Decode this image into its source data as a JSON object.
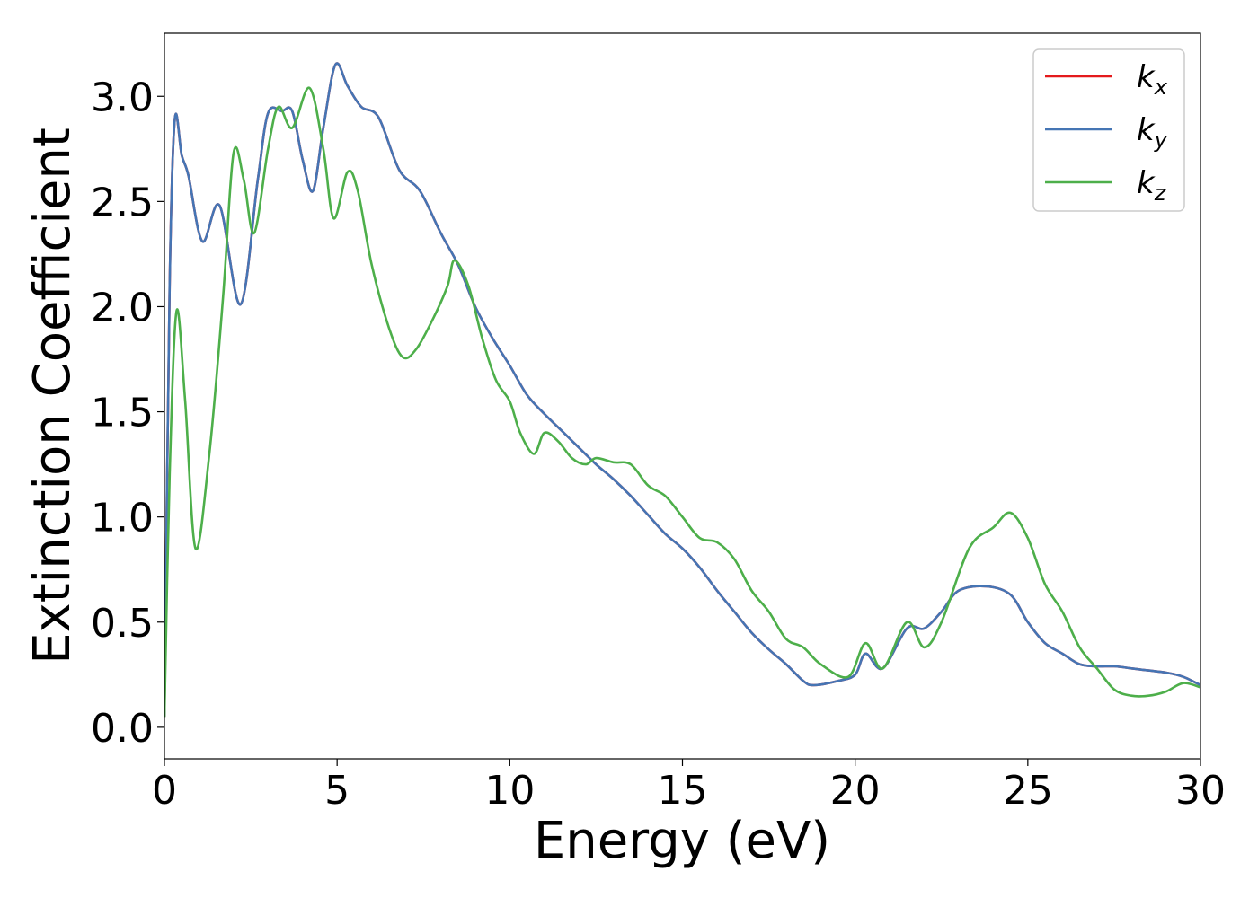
{
  "chart_data": {
    "type": "line",
    "title": "",
    "xlabel": "Energy (eV)",
    "ylabel": "Extinction Coefficient",
    "xlim": [
      0,
      30
    ],
    "ylim": [
      -0.15,
      3.3
    ],
    "xticks": [
      0,
      5,
      10,
      15,
      20,
      25,
      30
    ],
    "xtick_labels": [
      "0",
      "5",
      "10",
      "15",
      "20",
      "25",
      "30"
    ],
    "yticks": [
      0.0,
      0.5,
      1.0,
      1.5,
      2.0,
      2.5,
      3.0
    ],
    "ytick_labels": [
      "0.0",
      "0.5",
      "1.0",
      "1.5",
      "2.0",
      "2.5",
      "3.0"
    ],
    "grid": false,
    "legend_position": "top-right",
    "series": [
      {
        "name": "kx",
        "legend_base": "k",
        "legend_sub": "x",
        "color": "#e41a1c",
        "x": [
          0,
          0.15,
          0.3,
          0.5,
          0.7,
          1.1,
          1.6,
          2.2,
          2.7,
          3.0,
          3.4,
          3.7,
          4.0,
          4.3,
          4.6,
          4.95,
          5.3,
          5.7,
          6.2,
          6.8,
          7.4,
          8.0,
          8.5,
          9.0,
          9.5,
          10.0,
          10.5,
          11.0,
          11.5,
          12.0,
          12.5,
          13.0,
          13.5,
          14.0,
          14.5,
          15.0,
          15.5,
          16.0,
          16.5,
          17.0,
          17.5,
          18.0,
          18.5,
          18.8,
          19.5,
          20.0,
          20.3,
          20.8,
          21.5,
          22.0,
          22.5,
          23.0,
          23.8,
          24.5,
          25.0,
          25.5,
          26.0,
          26.5,
          27.0,
          27.5,
          28.0,
          28.5,
          29.0,
          29.5,
          30.0
        ],
        "y": [
          0.05,
          2.1,
          2.89,
          2.72,
          2.62,
          2.31,
          2.48,
          2.01,
          2.6,
          2.92,
          2.93,
          2.93,
          2.7,
          2.55,
          2.85,
          3.15,
          3.05,
          2.95,
          2.9,
          2.65,
          2.55,
          2.35,
          2.2,
          2.0,
          1.85,
          1.72,
          1.58,
          1.49,
          1.41,
          1.33,
          1.25,
          1.18,
          1.1,
          1.01,
          0.92,
          0.85,
          0.76,
          0.65,
          0.55,
          0.45,
          0.37,
          0.3,
          0.22,
          0.2,
          0.22,
          0.25,
          0.35,
          0.28,
          0.47,
          0.47,
          0.55,
          0.65,
          0.67,
          0.63,
          0.5,
          0.4,
          0.35,
          0.3,
          0.29,
          0.29,
          0.28,
          0.27,
          0.26,
          0.24,
          0.2
        ]
      },
      {
        "name": "ky",
        "legend_base": "k",
        "legend_sub": "y",
        "color": "#4575b4",
        "x": [
          0,
          0.15,
          0.3,
          0.5,
          0.7,
          1.1,
          1.6,
          2.2,
          2.7,
          3.0,
          3.4,
          3.7,
          4.0,
          4.3,
          4.6,
          4.95,
          5.3,
          5.7,
          6.2,
          6.8,
          7.4,
          8.0,
          8.5,
          9.0,
          9.5,
          10.0,
          10.5,
          11.0,
          11.5,
          12.0,
          12.5,
          13.0,
          13.5,
          14.0,
          14.5,
          15.0,
          15.5,
          16.0,
          16.5,
          17.0,
          17.5,
          18.0,
          18.5,
          18.8,
          19.5,
          20.0,
          20.3,
          20.8,
          21.5,
          22.0,
          22.5,
          23.0,
          23.8,
          24.5,
          25.0,
          25.5,
          26.0,
          26.5,
          27.0,
          27.5,
          28.0,
          28.5,
          29.0,
          29.5,
          30.0
        ],
        "y": [
          0.05,
          2.1,
          2.89,
          2.72,
          2.62,
          2.31,
          2.48,
          2.01,
          2.6,
          2.92,
          2.93,
          2.93,
          2.7,
          2.55,
          2.85,
          3.15,
          3.05,
          2.95,
          2.9,
          2.65,
          2.55,
          2.35,
          2.2,
          2.0,
          1.85,
          1.72,
          1.58,
          1.49,
          1.41,
          1.33,
          1.25,
          1.18,
          1.1,
          1.01,
          0.92,
          0.85,
          0.76,
          0.65,
          0.55,
          0.45,
          0.37,
          0.3,
          0.22,
          0.2,
          0.22,
          0.25,
          0.35,
          0.28,
          0.47,
          0.47,
          0.55,
          0.65,
          0.67,
          0.63,
          0.5,
          0.4,
          0.35,
          0.3,
          0.29,
          0.29,
          0.28,
          0.27,
          0.26,
          0.24,
          0.2
        ]
      },
      {
        "name": "kz",
        "legend_base": "k",
        "legend_sub": "z",
        "color": "#4daf4a",
        "x": [
          0,
          0.15,
          0.35,
          0.6,
          0.9,
          1.3,
          1.7,
          2.0,
          2.3,
          2.6,
          3.0,
          3.3,
          3.7,
          4.2,
          4.6,
          4.9,
          5.3,
          5.6,
          6.0,
          6.5,
          6.9,
          7.3,
          7.8,
          8.2,
          8.4,
          8.8,
          9.2,
          9.6,
          10.0,
          10.3,
          10.7,
          11.0,
          11.4,
          11.8,
          12.2,
          12.5,
          13.0,
          13.5,
          14.0,
          14.5,
          15.0,
          15.5,
          16.0,
          16.5,
          17.0,
          17.5,
          18.0,
          18.5,
          19.0,
          19.8,
          20.3,
          20.8,
          21.5,
          22.0,
          22.5,
          23.3,
          24.0,
          24.5,
          25.0,
          25.5,
          26.0,
          26.5,
          27.0,
          27.5,
          28.0,
          28.5,
          29.0,
          29.5,
          30.0
        ],
        "y": [
          0.05,
          1.2,
          1.98,
          1.55,
          0.85,
          1.3,
          2.05,
          2.73,
          2.6,
          2.35,
          2.75,
          2.95,
          2.85,
          3.04,
          2.75,
          2.42,
          2.64,
          2.55,
          2.2,
          1.9,
          1.76,
          1.8,
          1.95,
          2.1,
          2.22,
          2.1,
          1.85,
          1.65,
          1.55,
          1.4,
          1.3,
          1.4,
          1.36,
          1.28,
          1.25,
          1.28,
          1.26,
          1.25,
          1.15,
          1.1,
          1.0,
          0.9,
          0.88,
          0.8,
          0.65,
          0.55,
          0.42,
          0.38,
          0.3,
          0.24,
          0.4,
          0.28,
          0.5,
          0.38,
          0.5,
          0.85,
          0.95,
          1.02,
          0.9,
          0.68,
          0.55,
          0.38,
          0.28,
          0.18,
          0.15,
          0.15,
          0.17,
          0.21,
          0.19
        ]
      }
    ]
  }
}
